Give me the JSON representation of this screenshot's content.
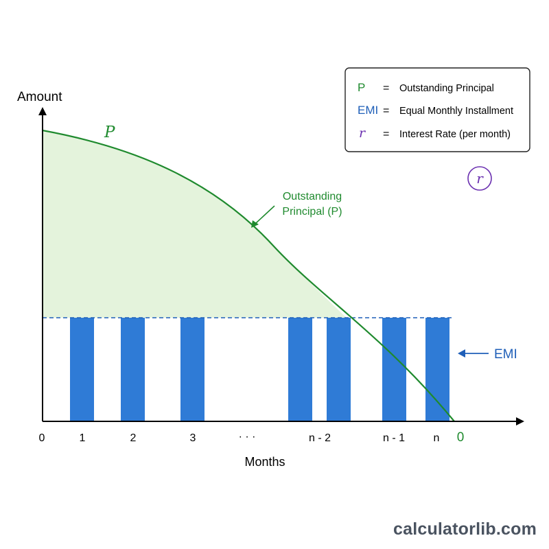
{
  "axes": {
    "y_label": "Amount",
    "x_label": "Months"
  },
  "x_ticks": [
    "0",
    "1",
    "2",
    "3",
    "· · ·",
    "n - 2",
    "n - 1",
    "n"
  ],
  "end_zero_label": "0",
  "curve": {
    "symbol": "P",
    "annotation_line1": "Outstanding",
    "annotation_line2": "Principal (P)"
  },
  "emi": {
    "label": "EMI",
    "bar_count": 7
  },
  "rate_badge": "r",
  "legend": [
    {
      "symbol": "P",
      "eq": "=",
      "text": "Outstanding Principal"
    },
    {
      "symbol": "EMI",
      "eq": "=",
      "text": "Equal Monthly Installment"
    },
    {
      "symbol": "r",
      "eq": "=",
      "text": "Interest Rate (per month)"
    }
  ],
  "colors": {
    "principal": "#1f8a2e",
    "principal_fill": "#e4f3dc",
    "emi": "#2f7bd6",
    "emi_text": "#1f5fb8",
    "rate": "#6a2fb0",
    "axis": "#000000"
  },
  "watermark": "calculatorlib.com"
}
